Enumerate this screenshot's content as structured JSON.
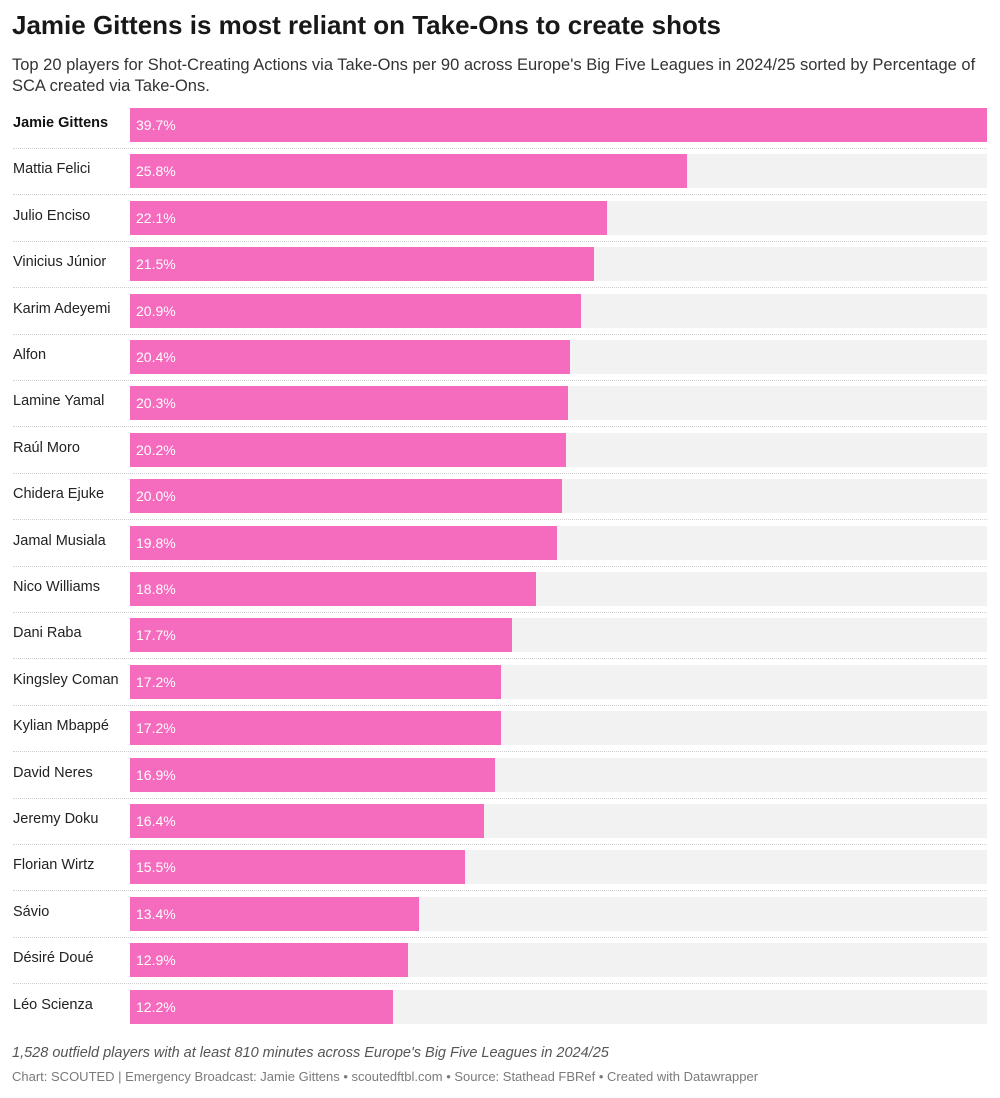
{
  "chart_data": {
    "type": "bar",
    "orientation": "horizontal",
    "title": "Jamie Gittens is most reliant on Take-Ons to create shots",
    "subtitle": "Top 20 players for Shot-Creating Actions via Take-Ons per 90 across Europe's Big Five Leagues in 2024/25 sorted by Percentage of SCA created via Take-Ons.",
    "highlight": "Jamie Gittens",
    "categories": [
      "Jamie Gittens",
      "Mattia Felici",
      "Julio Enciso",
      "Vinicius Júnior",
      "Karim Adeyemi",
      "Alfon",
      "Lamine Yamal",
      "Raúl Moro",
      "Chidera Ejuke",
      "Jamal Musiala",
      "Nico Williams",
      "Dani Raba",
      "Kingsley Coman",
      "Kylian Mbappé",
      "David Neres",
      "Jeremy Doku",
      "Florian Wirtz",
      "Sávio",
      "Désiré Doué",
      "Léo Scienza"
    ],
    "values": [
      39.7,
      25.8,
      22.1,
      21.5,
      20.9,
      20.4,
      20.3,
      20.2,
      20.0,
      19.8,
      18.8,
      17.7,
      17.2,
      17.2,
      16.9,
      16.4,
      15.5,
      13.4,
      12.9,
      12.2
    ],
    "value_labels": [
      "39.7%",
      "25.8%",
      "22.1%",
      "21.5%",
      "20.9%",
      "20.4%",
      "20.3%",
      "20.2%",
      "20.0%",
      "19.8%",
      "18.8%",
      "17.7%",
      "17.2%",
      "17.2%",
      "16.9%",
      "16.4%",
      "15.5%",
      "13.4%",
      "12.9%",
      "12.2%"
    ],
    "unit": "%",
    "xlim": [
      0,
      39.7
    ],
    "grid": false,
    "bar_color": "#f56bbd",
    "track_color": "#f2f2f2"
  },
  "notes": "1,528 outfield players with at least 810 minutes across Europe's Big Five Leagues in 2024/25",
  "credits": "Chart: SCOUTED | Emergency Broadcast: Jamie Gittens • scoutedftbl.com • Source: Stathead FBRef • Created with Datawrapper"
}
